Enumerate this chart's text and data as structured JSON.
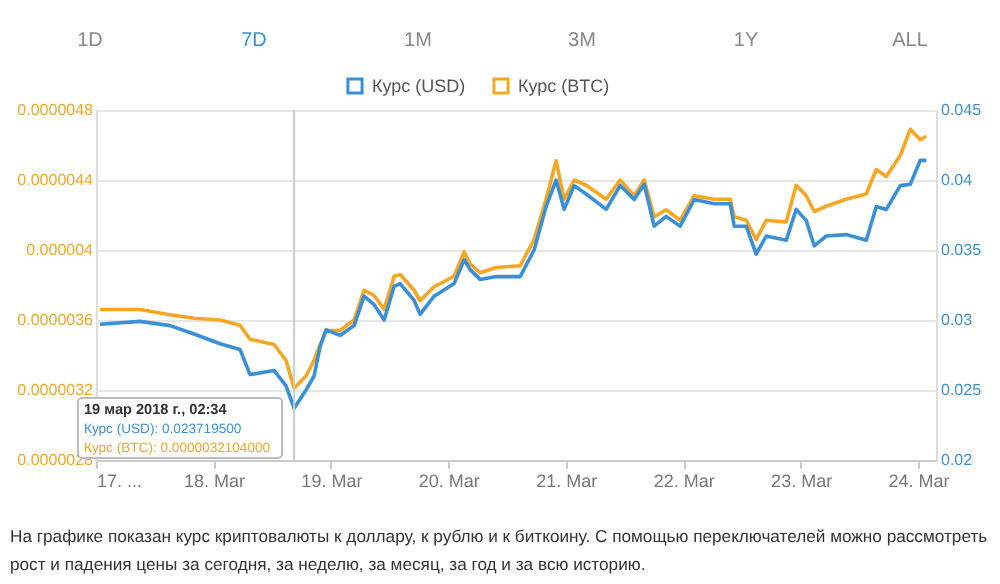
{
  "chart_data": {
    "type": "line",
    "annotations": [
      "1D",
      "7D",
      "1M",
      "3M",
      "1Y",
      "ALL",
      "19 мар 2018 г., 02:34\nКурс (USD): 0.023719500\nКурс (BTC): 0.0000032104000",
      "На графике показан курс криптовалюты к доллару, к рублю и к биткоину. С помощью переключателей можно рассмотреть\nрост и падения цены за сегодня, за неделю, за месяц, за год и за всю историю."
    ],
    "x": [
      "2018-03-17T00:49",
      "2018-03-17T09:00",
      "2018-03-17T15:08",
      "2018-03-17T20:02",
      "2018-03-18T01:21",
      "2018-03-18T05:26",
      "2018-03-18T07:29",
      "2018-03-18T12:23",
      "2018-03-18T14:50",
      "2018-03-18T16:29",
      "2018-03-18T18:56",
      "2018-03-18T20:34",
      "2018-03-18T21:48",
      "2018-03-18T23:01",
      "2018-03-19T01:53",
      "2018-03-19T04:45",
      "2018-03-19T06:47",
      "2018-03-19T08:50",
      "2018-03-19T10:53",
      "2018-03-19T12:55",
      "2018-03-19T14:09",
      "2018-03-19T17:01",
      "2018-03-19T18:14",
      "2018-03-19T21:06",
      "2018-03-20T01:11",
      "2018-03-20T03:14",
      "2018-03-20T04:28",
      "2018-03-20T06:30",
      "2018-03-20T09:46",
      "2018-03-20T14:41",
      "2018-03-20T17:32",
      "2018-03-20T19:59",
      "2018-03-20T22:02",
      "2018-03-20T23:40",
      "2018-03-21T01:43",
      "2018-03-21T04:10",
      "2018-03-21T08:16",
      "2018-03-21T11:07",
      "2018-03-21T13:59",
      "2018-03-21T16:02",
      "2018-03-21T18:04",
      "2018-03-21T20:32",
      "2018-03-21T23:23",
      "2018-03-22T02:15",
      "2018-03-22T06:20",
      "2018-03-22T09:37",
      "2018-03-22T10:26",
      "2018-03-22T12:53",
      "2018-03-22T14:55",
      "2018-03-22T16:58",
      "2018-03-22T21:04",
      "2018-03-22T23:06",
      "2018-03-23T01:09",
      "2018-03-23T02:47",
      "2018-03-23T05:14",
      "2018-03-23T09:19",
      "2018-03-23T13:25",
      "2018-03-23T15:28",
      "2018-03-23T17:30",
      "2018-03-23T20:22",
      "2018-03-23T22:25",
      "2018-03-24T00:27",
      "2018-03-24T01:41"
    ],
    "series": [
      {
        "name": "Курс (USD)",
        "color": "#3a8fd9",
        "axis": "y2",
        "values": [
          0.0297,
          0.0299,
          0.0296,
          0.029,
          0.0283,
          0.0279,
          0.0261,
          0.0264,
          0.0253,
          0.0237,
          0.025,
          0.026,
          0.0281,
          0.0293,
          0.0289,
          0.0296,
          0.0317,
          0.0311,
          0.03,
          0.0324,
          0.0326,
          0.0314,
          0.0304,
          0.0317,
          0.0326,
          0.0343,
          0.0336,
          0.0329,
          0.0331,
          0.0331,
          0.035,
          0.0381,
          0.04,
          0.0379,
          0.0396,
          0.039,
          0.0379,
          0.0396,
          0.0386,
          0.0397,
          0.0367,
          0.0374,
          0.0367,
          0.0386,
          0.0383,
          0.0383,
          0.0367,
          0.0367,
          0.0347,
          0.036,
          0.0357,
          0.0379,
          0.0371,
          0.0353,
          0.036,
          0.0361,
          0.0357,
          0.0381,
          0.0379,
          0.0396,
          0.0397,
          0.0414,
          0.0414
        ]
      },
      {
        "name": "Курс (BTC)",
        "color": "#f5a623",
        "values": [
          3.66e-06,
          3.66e-06,
          3.63e-06,
          3.61e-06,
          3.6e-06,
          3.57e-06,
          3.49e-06,
          3.46e-06,
          3.37e-06,
          3.21e-06,
          3.28e-06,
          3.37e-06,
          3.46e-06,
          3.54e-06,
          3.54e-06,
          3.6e-06,
          3.77e-06,
          3.74e-06,
          3.66e-06,
          3.85e-06,
          3.86e-06,
          3.77e-06,
          3.71e-06,
          3.79e-06,
          3.85e-06,
          3.99e-06,
          3.92e-06,
          3.87e-06,
          3.9e-06,
          3.91e-06,
          4.06e-06,
          4.29e-06,
          4.51e-06,
          4.29e-06,
          4.4e-06,
          4.37e-06,
          4.29e-06,
          4.4e-06,
          4.31e-06,
          4.4e-06,
          4.19e-06,
          4.23e-06,
          4.17e-06,
          4.31e-06,
          4.29e-06,
          4.29e-06,
          4.19e-06,
          4.17e-06,
          4.06e-06,
          4.17e-06,
          4.16e-06,
          4.37e-06,
          4.31e-06,
          4.22e-06,
          4.25e-06,
          4.29e-06,
          4.32e-06,
          4.46e-06,
          4.42e-06,
          4.54e-06,
          4.69e-06,
          4.63e-06,
          4.65e-06
        ]
      }
    ],
    "xlim": [
      "2018-03-17T00:00",
      "2018-03-24T03:40"
    ],
    "xticks": [
      {
        "value": "2018-03-17",
        "label": "17. ..."
      },
      {
        "value": "2018-03-18",
        "label": "18. Mar"
      },
      {
        "value": "2018-03-19",
        "label": "19. Mar"
      },
      {
        "value": "2018-03-20",
        "label": "20. Mar"
      },
      {
        "value": "2018-03-21",
        "label": "21. Mar"
      },
      {
        "value": "2018-03-22",
        "label": "22. Mar"
      },
      {
        "value": "2018-03-23",
        "label": "23. Mar"
      },
      {
        "value": "2018-03-24",
        "label": "24. Mar"
      }
    ],
    "ylim": [
      2.8e-06,
      4.8e-06
    ],
    "yticks": [
      {
        "value": 2.8e-06,
        "label": "0.0000028"
      },
      {
        "value": 3.2e-06,
        "label": "0.0000032"
      },
      {
        "value": 3.6e-06,
        "label": "0.0000036"
      },
      {
        "value": 4e-06,
        "label": "0.000004"
      },
      {
        "value": 4.4e-06,
        "label": "0.0000044"
      },
      {
        "value": 4.8e-06,
        "label": "0.0000048"
      }
    ],
    "y2lim": [
      0.02,
      0.045
    ],
    "y2ticks": [
      0.02,
      0.025,
      0.03,
      0.035,
      0.04,
      0.045
    ],
    "ref_lines": [
      {
        "axis": "x",
        "value": "2018-03-18T16:29",
        "color": "#cccccc"
      }
    ],
    "grid": "y",
    "legend": "top"
  }
}
